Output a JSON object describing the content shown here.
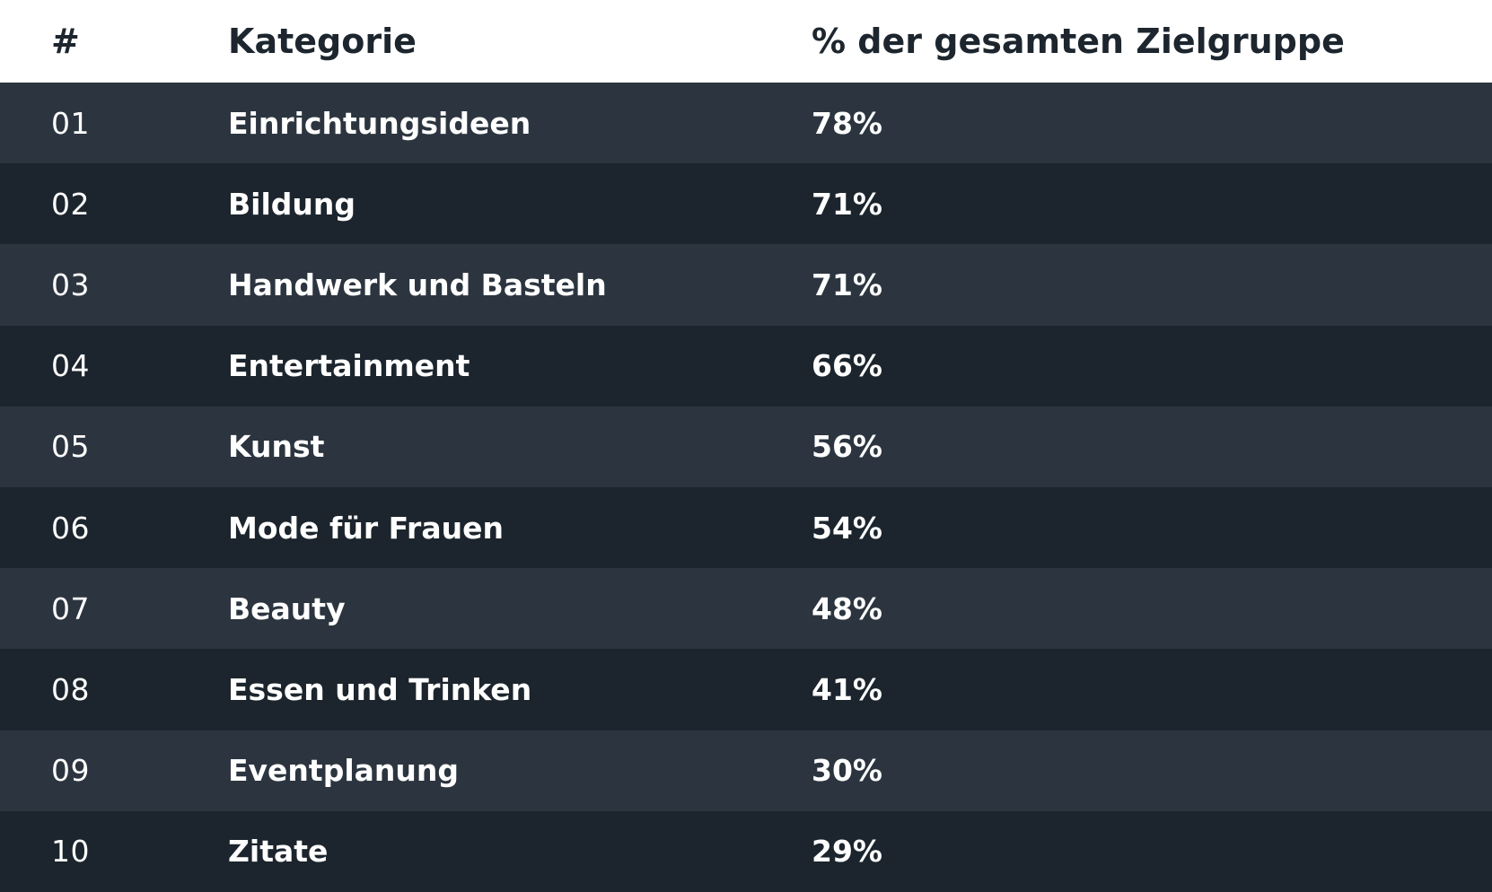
{
  "chart_data": {
    "type": "table",
    "columns": [
      "#",
      "Kategorie",
      "% der gesamten Zielgruppe"
    ],
    "rows": [
      {
        "num": "01",
        "category": "Einrichtungsideen",
        "percent": "78%"
      },
      {
        "num": "02",
        "category": "Bildung",
        "percent": "71%"
      },
      {
        "num": "03",
        "category": "Handwerk und Basteln",
        "percent": "71%"
      },
      {
        "num": "04",
        "category": "Entertainment",
        "percent": "66%"
      },
      {
        "num": "05",
        "category": "Kunst",
        "percent": "56%"
      },
      {
        "num": "06",
        "category": "Mode für Frauen",
        "percent": "54%"
      },
      {
        "num": "07",
        "category": "Beauty",
        "percent": "48%"
      },
      {
        "num": "08",
        "category": "Essen und Trinken",
        "percent": "41%"
      },
      {
        "num": "09",
        "category": "Eventplanung",
        "percent": "30%"
      },
      {
        "num": "10",
        "category": "Zitate",
        "percent": "29%"
      }
    ],
    "colors": {
      "header_bg": "#ffffff",
      "header_text": "#1d262e",
      "row_odd": "#2c353f",
      "row_even": "#1c252d",
      "row_text": "#ffffff"
    }
  }
}
